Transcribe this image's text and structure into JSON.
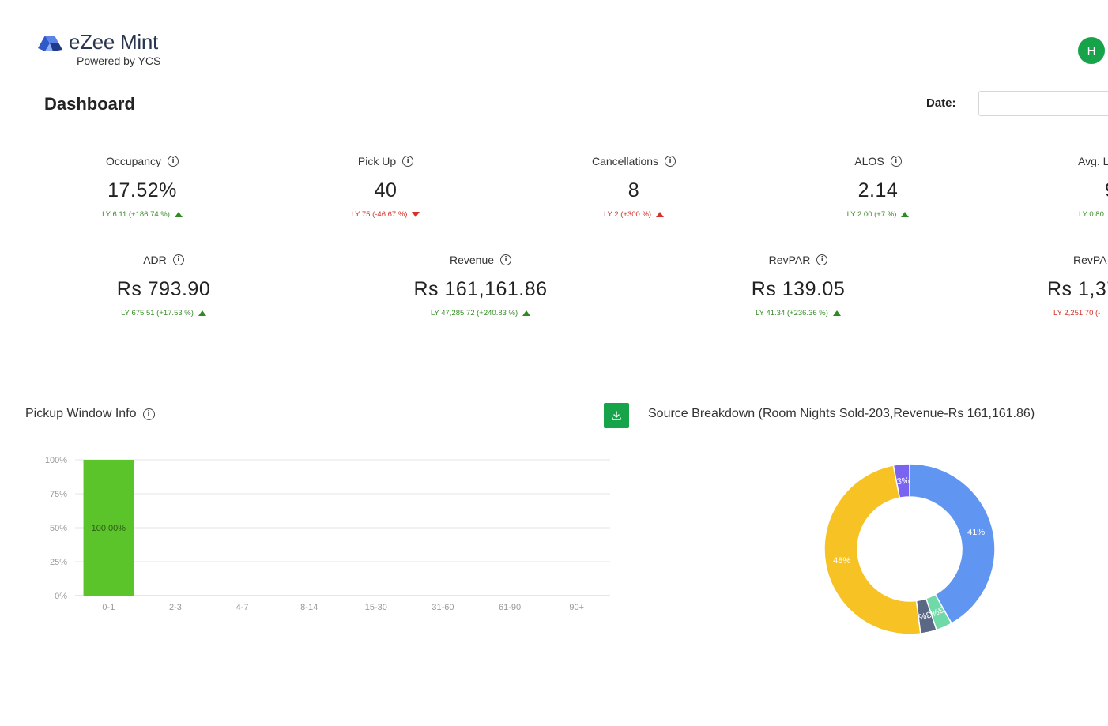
{
  "brand": {
    "name": "eZee Mint",
    "tagline": "Powered by YCS"
  },
  "user": {
    "avatar_initial": "H",
    "avatar_color": "#16a34a"
  },
  "page": {
    "title": "Dashboard",
    "date_label": "Date:",
    "date_value": ""
  },
  "metrics": [
    {
      "label": "Occupancy",
      "value": "17.52%",
      "ly": "LY 6.11 (+186.74 %)",
      "trend": "up"
    },
    {
      "label": "Pick Up",
      "value": "40",
      "ly": "LY 75 (-46.67 %)",
      "trend": "down"
    },
    {
      "label": "Cancellations",
      "value": "8",
      "ly": "LY 2 (+300 %)",
      "trend": "up-bad"
    },
    {
      "label": "ALOS",
      "value": "2.14",
      "ly": "LY 2.00 (+7 %)",
      "trend": "up"
    },
    {
      "label": "Avg. L",
      "value": "9",
      "ly": "LY 0.80",
      "trend": "up"
    },
    {
      "label": "ADR",
      "value": "Rs 793.90",
      "ly": "LY 675.51 (+17.53 %)",
      "trend": "up"
    },
    {
      "label": "Revenue",
      "value": "Rs 161,161.86",
      "ly": "LY 47,285.72 (+240.83 %)",
      "trend": "up"
    },
    {
      "label": "RevPAR",
      "value": "Rs 139.05",
      "ly": "LY 41.34 (+236.36 %)",
      "trend": "up"
    },
    {
      "label": "RevPA",
      "value": "Rs 1,37",
      "ly": "LY 2,251.70 (-",
      "trend": "down"
    }
  ],
  "pickup": {
    "title": "Pickup Window Info",
    "chart_data": {
      "type": "bar",
      "categories": [
        "0-1",
        "2-3",
        "4-7",
        "8-14",
        "15-30",
        "31-60",
        "61-90",
        "90+"
      ],
      "values": [
        100,
        0,
        0,
        0,
        0,
        0,
        0,
        0
      ],
      "data_labels": [
        "100.00%",
        "",
        "",
        "",
        "",
        "",
        "",
        ""
      ],
      "y_ticks": [
        "0%",
        "25%",
        "50%",
        "75%",
        "100%"
      ],
      "ylim": [
        0,
        100
      ],
      "grid": true,
      "bar_color": "#5cc42b"
    }
  },
  "source": {
    "title": "Source Breakdown (Room Nights Sold-203,Revenue-Rs 161,161.86)",
    "download_icon": "download-icon",
    "chart_data": {
      "type": "pie",
      "donut": true,
      "values": [
        41,
        3,
        3,
        48,
        3
      ],
      "labels": [
        "41%",
        "3%",
        "3%",
        "48%",
        "3%"
      ],
      "colors": [
        "#6195f2",
        "#6fd9a8",
        "#5a6886",
        "#f6c224",
        "#7b63f2"
      ]
    }
  }
}
